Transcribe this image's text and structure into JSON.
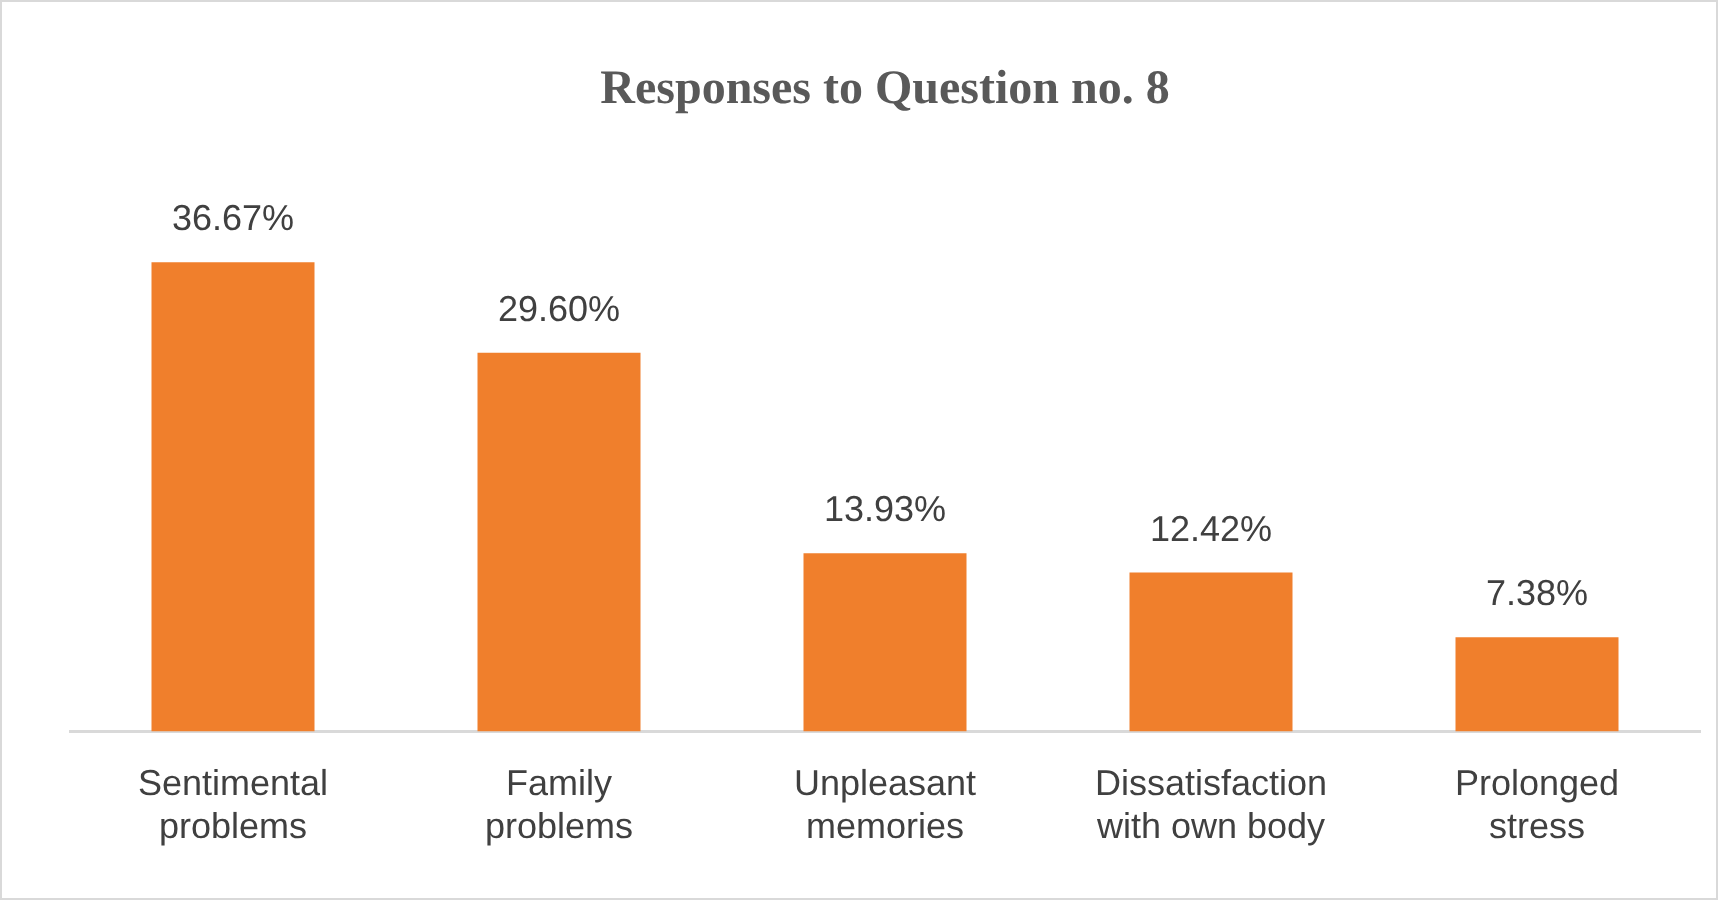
{
  "chart_data": {
    "type": "bar",
    "title": "Responses to Question no. 8",
    "categories": [
      "Sentimental problems",
      "Family problems",
      "Unpleasant memories",
      "Dissatisfaction with own body",
      "Prolonged stress"
    ],
    "values": [
      36.67,
      29.6,
      13.93,
      12.42,
      7.38
    ],
    "value_labels": [
      "36.67%",
      "29.60%",
      "13.93%",
      "12.42%",
      "7.38%"
    ],
    "color": "#f07f2c",
    "grid": false,
    "legend": false
  }
}
